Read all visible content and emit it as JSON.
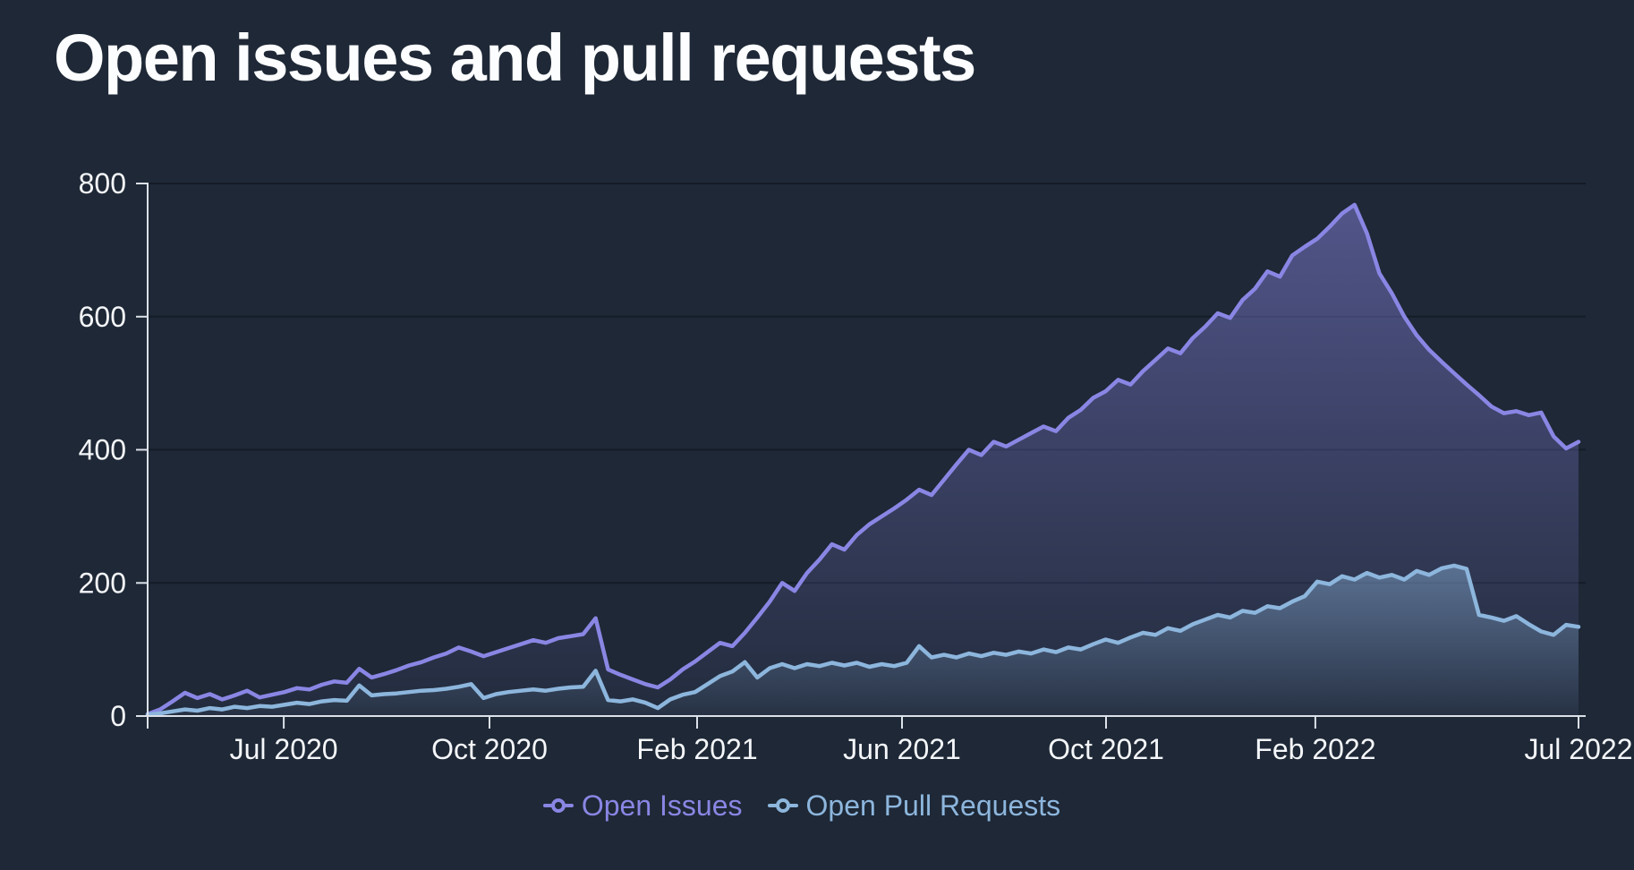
{
  "title": "Open issues and pull requests",
  "colors": {
    "background": "#1e2836",
    "axis": "#dce1e9",
    "tick_label": "#f4f6f9",
    "gridline": "rgba(9,16,26,0.5)",
    "issues": "#8986e4",
    "prs": "#8db6dd",
    "issues_fill_top": "rgba(137,134,228,0.48)",
    "issues_fill_bottom": "rgba(137,134,228,0.04)",
    "prs_fill_top": "rgba(141,182,221,0.45)",
    "prs_fill_bottom": "rgba(141,182,221,0.04)"
  },
  "legend": {
    "items": [
      {
        "label": "Open Issues",
        "color": "#8986e4"
      },
      {
        "label": "Open Pull Requests",
        "color": "#8db6dd"
      }
    ]
  },
  "chart_data": {
    "type": "area",
    "title": "Open issues and pull requests",
    "x_axis": {
      "unit": "weekly time points, Apr 2020 - Jul 2022",
      "ticks": [
        {
          "label": "",
          "f": 0
        },
        {
          "label": "Jul 2020",
          "f": 0.0951
        },
        {
          "label": "Oct 2020",
          "f": 0.2389
        },
        {
          "label": "Feb 2021",
          "f": 0.384
        },
        {
          "label": "Jun 2021",
          "f": 0.5272
        },
        {
          "label": "Oct 2021",
          "f": 0.6698
        },
        {
          "label": "Feb 2022",
          "f": 0.8161
        },
        {
          "label": "Jul 2022",
          "f": 1.0
        }
      ]
    },
    "y_axis": {
      "ticks": [
        0,
        200,
        400,
        600,
        800
      ],
      "ylim": [
        0,
        800
      ],
      "grid": true
    },
    "legend_position": "bottom-center",
    "series": [
      {
        "name": "Open Issues",
        "color": "#8986e4",
        "values": [
          3,
          10,
          22,
          35,
          27,
          33,
          25,
          31,
          38,
          28,
          32,
          36,
          42,
          40,
          47,
          52,
          50,
          71,
          58,
          63,
          69,
          76,
          81,
          88,
          94,
          103,
          97,
          90,
          96,
          102,
          108,
          114,
          110,
          117,
          120,
          123,
          147,
          70,
          62,
          55,
          48,
          43,
          55,
          70,
          82,
          96,
          110,
          105,
          125,
          148,
          172,
          200,
          188,
          215,
          235,
          258,
          250,
          272,
          288,
          300,
          312,
          325,
          340,
          332,
          355,
          378,
          400,
          392,
          412,
          405,
          415,
          425,
          435,
          428,
          448,
          460,
          478,
          488,
          505,
          498,
          518,
          535,
          552,
          545,
          568,
          585,
          605,
          598,
          625,
          642,
          668,
          660,
          692,
          705,
          717,
          735,
          755,
          768,
          725,
          665,
          635,
          600,
          572,
          550,
          532,
          515,
          498,
          482,
          465,
          455,
          458,
          452,
          456,
          420,
          402,
          412
        ]
      },
      {
        "name": "Open Pull Requests",
        "color": "#8db6dd",
        "values": [
          2,
          4,
          7,
          10,
          8,
          12,
          10,
          14,
          12,
          15,
          14,
          17,
          20,
          18,
          22,
          24,
          23,
          46,
          31,
          33,
          34,
          36,
          38,
          39,
          41,
          44,
          48,
          27,
          33,
          36,
          38,
          40,
          38,
          41,
          43,
          44,
          68,
          24,
          22,
          25,
          20,
          12,
          25,
          32,
          36,
          48,
          60,
          67,
          81,
          58,
          72,
          78,
          72,
          78,
          75,
          80,
          76,
          80,
          74,
          78,
          75,
          80,
          105,
          88,
          92,
          88,
          94,
          90,
          95,
          92,
          97,
          94,
          100,
          96,
          103,
          100,
          108,
          115,
          110,
          118,
          125,
          122,
          132,
          128,
          138,
          145,
          152,
          148,
          158,
          155,
          165,
          162,
          172,
          180,
          202,
          198,
          210,
          205,
          215,
          208,
          212,
          205,
          218,
          212,
          222,
          226,
          221,
          152,
          148,
          143,
          150,
          138,
          127,
          122,
          137,
          134
        ]
      }
    ]
  }
}
